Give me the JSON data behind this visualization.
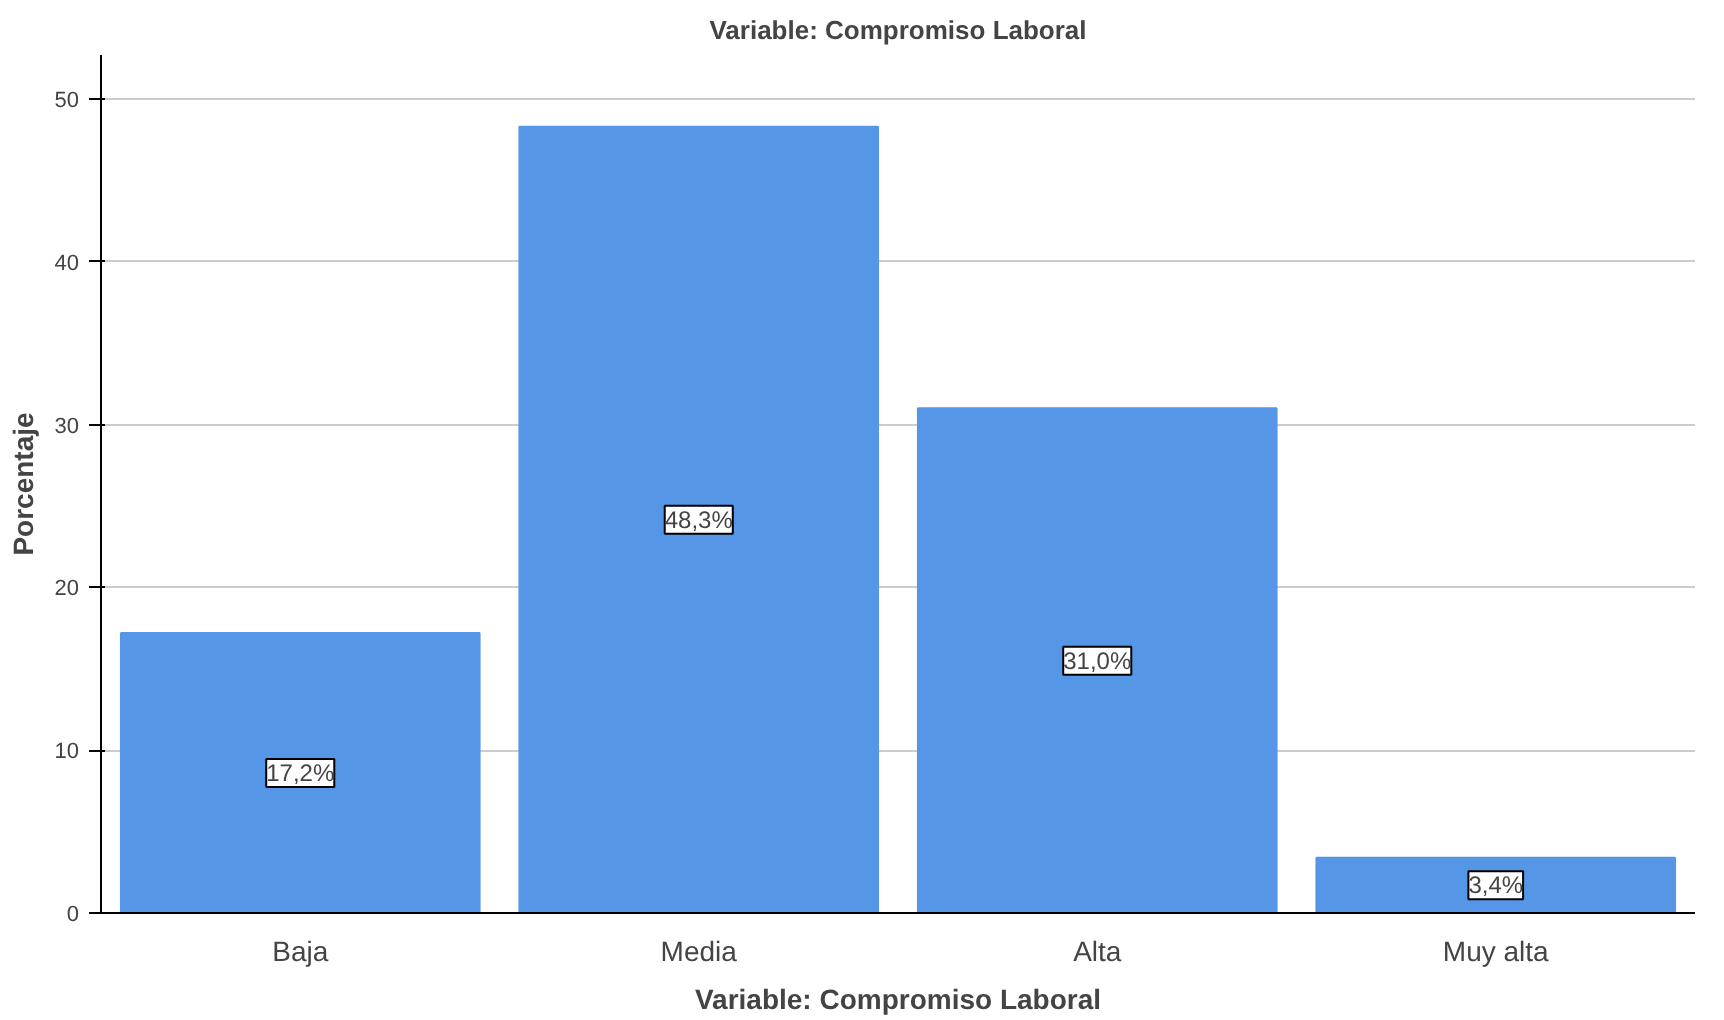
{
  "chart_data": {
    "type": "bar",
    "title": "Variable: Compromiso Laboral",
    "xlabel": "Variable: Compromiso Laboral",
    "ylabel": "Porcentaje",
    "categories": [
      "Baja",
      "Media",
      "Alta",
      "Muy alta"
    ],
    "values": [
      17.2,
      48.3,
      31.0,
      3.4
    ],
    "value_labels": [
      "17,2%",
      "48,3%",
      "31,0%",
      "3,4%"
    ],
    "color": "#5596e6",
    "ylim": [
      0,
      52.7
    ],
    "yticks": [
      0,
      10,
      20,
      30,
      40,
      50
    ],
    "grid": "y"
  }
}
